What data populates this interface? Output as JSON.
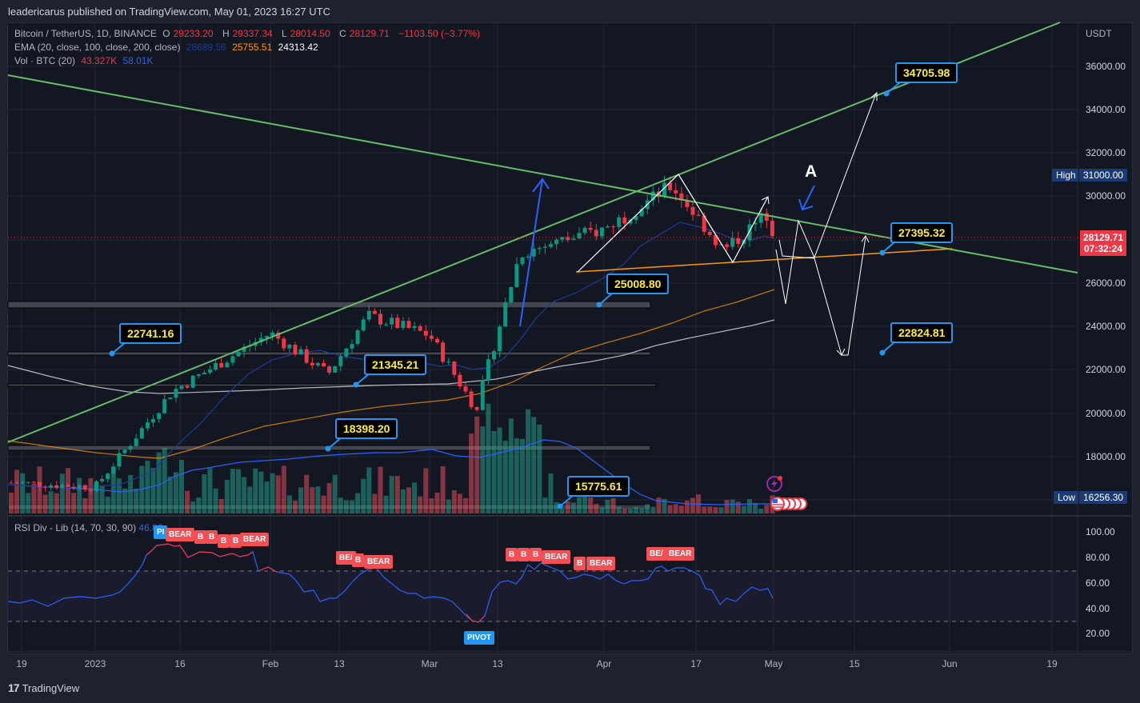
{
  "header": {
    "published": "leadericarus published on TradingView.com, May 01, 2023 16:27 UTC"
  },
  "legend": {
    "symbol": "Bitcoin / TetherUS, 1D, BINANCE",
    "open_label": "O",
    "open": "29233.20",
    "high_label": "H",
    "high": "29337.34",
    "low_label": "L",
    "low": "28014.50",
    "close_label": "C",
    "close": "28129.71",
    "change": "−1103.50 (−3.77%)",
    "ema_label": "EMA (20, close, 100, close, 200, close)",
    "ema20": "28689.56",
    "ema100": "25755.51",
    "ema200": "24313.42",
    "vol_label": "Vol · BTC (20)",
    "vol": "43.327K",
    "vol_ma": "58.01K"
  },
  "rsi": {
    "label": "RSI Div - Lib (14, 70, 30, 90)",
    "value": "46.86"
  },
  "price_axis": {
    "currency": "USDT",
    "ticks": [
      "36000.00",
      "34000.00",
      "32000.00",
      "30000.00",
      "26000.00",
      "24000.00",
      "22000.00",
      "20000.00",
      "18000.00"
    ],
    "high_label": "High",
    "high_value": "31000.00",
    "low_label": "Low",
    "low_value": "16256.30",
    "last_price": "28129.71",
    "countdown": "07:32:24"
  },
  "rsi_axis": {
    "ticks": [
      "100.00",
      "80.00",
      "60.00",
      "40.00",
      "20.00"
    ]
  },
  "time_axis": {
    "ticks": [
      "19",
      "2023",
      "16",
      "Feb",
      "13",
      "Mar",
      "13",
      "Apr",
      "17",
      "May",
      "15",
      "Jun",
      "19"
    ]
  },
  "callouts": [
    "34705.98",
    "27395.32",
    "25008.80",
    "22824.81",
    "22741.16",
    "21345.21",
    "18398.20",
    "15775.61"
  ],
  "annotation_text": "A",
  "badges": {
    "bear": "BEAR",
    "bear_trunc1": "BE/",
    "bear_trunc2": "B",
    "pivot": "PIVOT",
    "pivot_trunc": "PI"
  },
  "footer": {
    "brand": "TradingView",
    "logo": "17"
  },
  "colors": {
    "up": "#089981",
    "down": "#f23645",
    "bg": "#131722",
    "trendline": "#66bb6a",
    "ema20": "#1c3b94",
    "ema100": "#ff9800",
    "ema200": "#b2b5be",
    "callout_border": "#2196f3",
    "callout_text": "#ffeb3b"
  },
  "chart_data": {
    "type": "candlestick",
    "title": "Bitcoin / TetherUS, 1D, BINANCE",
    "xlabel": "",
    "ylabel": "USDT",
    "ylim": [
      16000,
      37000
    ],
    "x_ticks": [
      "19",
      "2023",
      "16",
      "Feb",
      "13",
      "Mar",
      "13",
      "Apr",
      "17",
      "May",
      "15",
      "Jun",
      "19"
    ],
    "last_ohlc": {
      "open": 29233.2,
      "high": 29337.34,
      "low": 28014.5,
      "close": 28129.71,
      "change": -1103.5,
      "change_pct": -3.77
    },
    "ema": {
      "ema20": 28689.56,
      "ema100": 25755.51,
      "ema200": 24313.42
    },
    "visible_high": 31000.0,
    "visible_low": 16256.3,
    "price_levels": [
      34705.98,
      27395.32,
      25008.8,
      22824.81,
      22741.16,
      21345.21,
      18398.2,
      15775.61
    ],
    "horizontal_zones": [
      25008.8,
      22741.16,
      21345.21,
      18398.2,
      15775.61
    ],
    "approx_closes_by_period": [
      {
        "label": "late Dec",
        "close": 16800
      },
      {
        "label": "2023 start",
        "close": 16600
      },
      {
        "label": "Jan 16",
        "close": 21000
      },
      {
        "label": "Feb 1",
        "close": 23700
      },
      {
        "label": "Feb 13",
        "close": 21800
      },
      {
        "label": "Feb 17",
        "close": 24500
      },
      {
        "label": "Mar 1",
        "close": 23600
      },
      {
        "label": "Mar 10",
        "close": 20200
      },
      {
        "label": "Mar 17",
        "close": 27400
      },
      {
        "label": "Apr 1",
        "close": 28500
      },
      {
        "label": "Apr 14",
        "close": 30500
      },
      {
        "label": "Apr 24",
        "close": 27500
      },
      {
        "label": "Apr 30",
        "close": 29233
      },
      {
        "label": "May 1",
        "close": 28130
      }
    ],
    "volume": {
      "label": "Vol · BTC (20)",
      "last": "43.327K",
      "ma": "58.01K"
    },
    "rsi": {
      "label": "RSI Div - Lib (14, 70, 30, 90)",
      "last": 46.86,
      "overbought": 70,
      "oversold": 30,
      "ylim": [
        10,
        105
      ],
      "ticks": [
        100,
        80,
        60,
        40,
        20
      ]
    },
    "legend_position": "top-left",
    "grid": true
  }
}
